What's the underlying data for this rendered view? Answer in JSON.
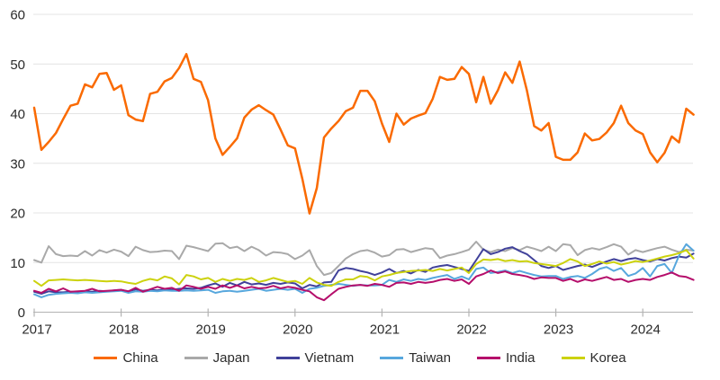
{
  "chart_data": {
    "type": "line",
    "title": "",
    "xlabel": "",
    "ylabel": "",
    "x_unit": "month",
    "x_start": "2017-01",
    "x_end": "2024-08",
    "x_tick_labels": [
      "2017",
      "2018",
      "2019",
      "2020",
      "2021",
      "2022",
      "2023",
      "2024"
    ],
    "y_ticks": [
      0,
      10,
      20,
      30,
      40,
      50,
      60
    ],
    "ylim": [
      0,
      60
    ],
    "grid": "horizontal",
    "legend_position": "bottom",
    "colors": {
      "axis_text": "#2b2b2b",
      "gridline": "#e4e4e4",
      "axis_line": "#b3b3b3"
    },
    "series": [
      {
        "name": "China",
        "color": "#fa6a02",
        "values": [
          41.2,
          32.7,
          34.3,
          36.1,
          38.9,
          41.6,
          42,
          45.9,
          45.3,
          48,
          48.2,
          44.8,
          45.7,
          39.7,
          38.8,
          38.5,
          44,
          44.4,
          46.5,
          47.2,
          49.2,
          52,
          47,
          46.4,
          42.7,
          35,
          31.7,
          33.3,
          35,
          39.2,
          40.8,
          41.7,
          40.7,
          39.8,
          36.8,
          33.6,
          33,
          26.9,
          19.9,
          25,
          35.2,
          37,
          38.5,
          40.5,
          41.2,
          44.6,
          44.6,
          42.5,
          38,
          34.3,
          40,
          37.8,
          39,
          39.6,
          40.1,
          43,
          47.4,
          46.8,
          47,
          49.4,
          48,
          42.3,
          47.4,
          42,
          44.7,
          48.3,
          46.2,
          50.5,
          44.7,
          37.5,
          36.6,
          38.1,
          31.3,
          30.7,
          30.7,
          32.2,
          36,
          34.6,
          34.9,
          36.2,
          38.1,
          41.6,
          38.1,
          36.6,
          35.9,
          32.2,
          30.2,
          32.1,
          35.4,
          34.2,
          41,
          39.8
        ]
      },
      {
        "name": "Japan",
        "color": "#a9a9a9",
        "values": [
          10.5,
          10,
          13.3,
          11.7,
          11.3,
          11.4,
          11.3,
          12.3,
          11.4,
          12.5,
          12,
          12.6,
          12.2,
          11.3,
          13.2,
          12.5,
          12.1,
          12.2,
          12.4,
          12.3,
          10.7,
          13.4,
          13.1,
          12.7,
          12.3,
          13.8,
          13.9,
          12.9,
          13.2,
          12.3,
          13.2,
          12.5,
          11.4,
          12.1,
          12,
          11.7,
          10.7,
          11.4,
          12.5,
          9.3,
          7.5,
          7.9,
          9.3,
          10.8,
          11.7,
          12.3,
          12.5,
          12,
          11.2,
          11.5,
          12.6,
          12.7,
          12.1,
          12.5,
          12.9,
          12.7,
          10.9,
          11.4,
          11.7,
          12.1,
          12.6,
          14.2,
          12.6,
          12.1,
          12.6,
          12.3,
          12.9,
          12.5,
          13.2,
          12.8,
          12.3,
          13.2,
          12.3,
          13.7,
          13.5,
          11.5,
          12.5,
          12.9,
          12.6,
          13.1,
          13.7,
          13.2,
          11.6,
          12.5,
          12.1,
          12.5,
          12.9,
          13.2,
          12.6,
          12.1,
          12.6,
          12.4
        ]
      },
      {
        "name": "Vietnam",
        "color": "#40419a",
        "values": [
          4.1,
          3.7,
          4.2,
          4,
          4,
          4.1,
          4,
          4.2,
          4.1,
          4.3,
          4.2,
          4.4,
          4.5,
          4.2,
          4.6,
          4.3,
          4.5,
          4.4,
          4.6,
          4.5,
          4.7,
          4.8,
          4.7,
          4.9,
          5.4,
          5.8,
          5.1,
          5.9,
          5.4,
          6.1,
          5.6,
          5.8,
          5.5,
          5.9,
          5.7,
          6,
          5.8,
          4.8,
          5.5,
          5.2,
          6,
          6.1,
          8.4,
          8.9,
          8.7,
          8.3,
          8,
          7.5,
          8,
          8.7,
          7.9,
          8.3,
          7.8,
          8.5,
          8.1,
          9,
          9.3,
          9.5,
          9.1,
          8.7,
          8.3,
          10.5,
          12.7,
          11.7,
          12.1,
          12.8,
          13.1,
          12.3,
          11.7,
          10.5,
          9.3,
          8.9,
          9.3,
          8.5,
          8.9,
          9.3,
          9.6,
          9.1,
          9.7,
          10.2,
          10.7,
          10.3,
          10.7,
          10.9,
          10.5,
          10.2,
          10.7,
          10.4,
          10.9,
          11.2,
          11,
          11.8
        ]
      },
      {
        "name": "Taiwan",
        "color": "#57a7dd",
        "values": [
          3.6,
          3,
          3.5,
          3.7,
          3.8,
          3.9,
          3.8,
          4,
          3.9,
          4,
          4.1,
          4.2,
          4.3,
          3.9,
          4.2,
          4.1,
          4.3,
          4.2,
          4.4,
          4.3,
          4.3,
          4.4,
          4.3,
          4.4,
          4.5,
          3.9,
          4.2,
          4.3,
          4.1,
          4.3,
          4.5,
          4.7,
          4.3,
          4.5,
          4.7,
          4.5,
          4.7,
          3.9,
          4.7,
          4.9,
          5.3,
          5.5,
          5.7,
          5.5,
          5.3,
          5.5,
          5.4,
          5.4,
          5.5,
          6.5,
          6.1,
          6.6,
          6.3,
          6.7,
          6.5,
          6.9,
          7.2,
          7.5,
          6.7,
          7.2,
          6.6,
          8.7,
          9,
          7.9,
          8.1,
          8.4,
          7.9,
          8.3,
          7.9,
          7.5,
          7.2,
          7.3,
          7.3,
          6.7,
          7.1,
          7.3,
          6.9,
          7.7,
          8.7,
          9.1,
          8.3,
          8.9,
          7.3,
          7.8,
          8.9,
          7.2,
          9.3,
          9.7,
          7.9,
          11.4,
          13.7,
          12.4
        ]
      },
      {
        "name": "India",
        "color": "#b50e6b",
        "values": [
          4.3,
          3.9,
          4.7,
          4.2,
          4.8,
          4.1,
          4.2,
          4.3,
          4.7,
          4.2,
          4.3,
          4.4,
          4.5,
          4.2,
          4.9,
          4.1,
          4.6,
          5.1,
          4.7,
          4.9,
          4.3,
          5.4,
          5.1,
          4.7,
          5.1,
          4.7,
          5.4,
          4.9,
          5.4,
          4.8,
          5.1,
          4.8,
          4.9,
          5.3,
          4.8,
          5.1,
          4.9,
          4.5,
          4.2,
          3,
          2.4,
          3.6,
          4.7,
          5.1,
          5.4,
          5.5,
          5.3,
          5.7,
          5.5,
          5.1,
          5.9,
          6,
          5.7,
          6.1,
          5.9,
          6.1,
          6.5,
          6.7,
          6.3,
          6.6,
          5.7,
          7.2,
          7.7,
          8.4,
          7.9,
          8.2,
          7.7,
          7.5,
          7.2,
          6.7,
          7,
          6.9,
          6.9,
          6.3,
          6.7,
          6.1,
          6.6,
          6.3,
          6.7,
          7.1,
          6.5,
          6.7,
          6.1,
          6.5,
          6.7,
          6.5,
          7.1,
          7.5,
          8,
          7.3,
          7.1,
          6.5
        ]
      },
      {
        "name": "Korea",
        "color": "#ccd20e",
        "values": [
          6.3,
          5.3,
          6.4,
          6.5,
          6.6,
          6.5,
          6.4,
          6.5,
          6.4,
          6.3,
          6.2,
          6.3,
          6.2,
          5.9,
          5.7,
          6.3,
          6.7,
          6.4,
          7.2,
          6.8,
          5.6,
          7.5,
          7.2,
          6.6,
          6.9,
          6.1,
          6.7,
          6.3,
          6.7,
          6.5,
          6.9,
          6.1,
          6.4,
          6.9,
          6.5,
          6.1,
          6.3,
          5.7,
          6.9,
          6,
          5.5,
          5.3,
          6.1,
          6.6,
          6.6,
          7.3,
          7.1,
          6.4,
          7.2,
          7.5,
          7.9,
          8.1,
          8.3,
          8.4,
          8.5,
          8.3,
          8.7,
          8.4,
          8.7,
          9,
          7.9,
          9.7,
          10.6,
          10.5,
          10.7,
          10.3,
          10.5,
          10.2,
          10.3,
          9.9,
          9.7,
          9.5,
          9.3,
          9.9,
          10.7,
          10.2,
          9.3,
          9.7,
          10.2,
          9.8,
          10.1,
          9.6,
          9.9,
          10.3,
          10.1,
          10.4,
          10.8,
          11.2,
          11.5,
          11.9,
          12.5,
          10.8
        ]
      }
    ]
  }
}
